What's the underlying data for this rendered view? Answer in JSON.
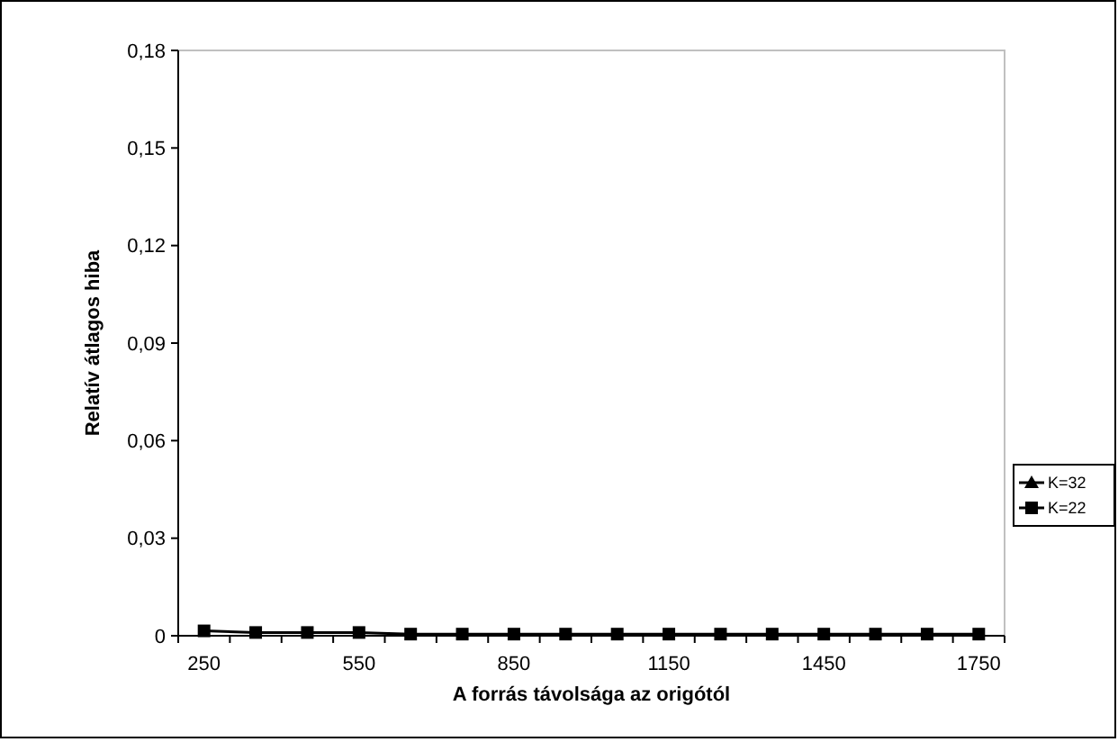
{
  "chart_data": {
    "type": "line",
    "xlabel": "A forrás távolsága az origótól",
    "ylabel": "Relatív átlagos hiba",
    "categories": [
      "250",
      null,
      null,
      "550",
      null,
      null,
      "850",
      null,
      null,
      "1150",
      null,
      null,
      "1450",
      null,
      null,
      "1750"
    ],
    "ylim": [
      0,
      0.18
    ],
    "yticks": [
      {
        "value": 0,
        "label": "0"
      },
      {
        "value": 0.03,
        "label": "0,03"
      },
      {
        "value": 0.06,
        "label": "0,06"
      },
      {
        "value": 0.09,
        "label": "0,09"
      },
      {
        "value": 0.12,
        "label": "0,12"
      },
      {
        "value": 0.15,
        "label": "0,15"
      },
      {
        "value": 0.18,
        "label": "0,18"
      }
    ],
    "legend": "right",
    "grid": false,
    "series": [
      {
        "name": "K=32",
        "color": "#000000",
        "marker": "triangle",
        "values": [
          null,
          null,
          null,
          null,
          null,
          null,
          null,
          null,
          null,
          null,
          null,
          null,
          null,
          null,
          null,
          null
        ]
      },
      {
        "name": "K=22",
        "color": "#000000",
        "marker": "square",
        "values": [
          0.0015,
          0.001,
          0.001,
          0.001,
          0.0005,
          0.0005,
          0.0005,
          0.0005,
          0.0005,
          0.0005,
          0.0005,
          0.0005,
          0.0005,
          0.0005,
          0.0005,
          0.0005
        ]
      }
    ]
  }
}
